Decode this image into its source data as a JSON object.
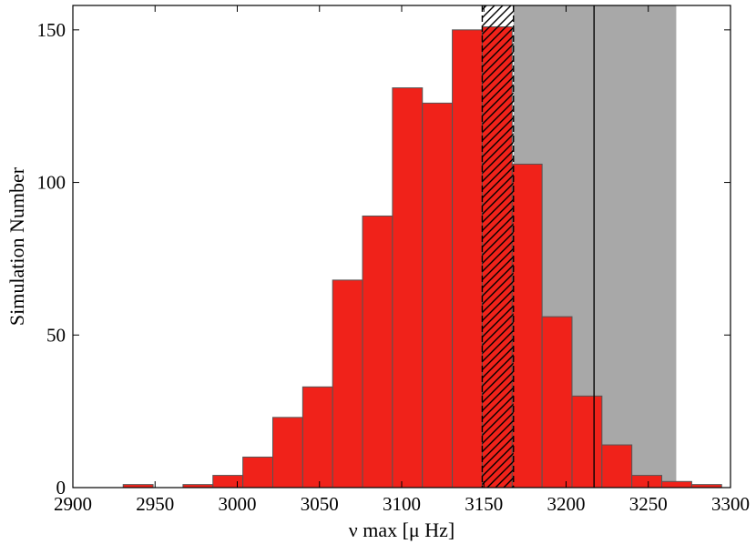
{
  "chart_data": {
    "type": "bar",
    "title": "",
    "xlabel": "ν max [μ Hz]",
    "ylabel": "Simulation Number",
    "xlim": [
      2900,
      3300
    ],
    "ylim": [
      0,
      158
    ],
    "xticks": [
      2900,
      2950,
      3000,
      3050,
      3100,
      3150,
      3200,
      3250,
      3300
    ],
    "yticks": [
      0,
      50,
      100,
      150
    ],
    "bins": [
      {
        "x0": 2930.6,
        "x1": 2948.8,
        "value": 1
      },
      {
        "x0": 2948.8,
        "x1": 2967.0,
        "value": 0
      },
      {
        "x0": 2967.0,
        "x1": 2985.2,
        "value": 1
      },
      {
        "x0": 2985.2,
        "x1": 3003.4,
        "value": 4
      },
      {
        "x0": 3003.4,
        "x1": 3021.6,
        "value": 10
      },
      {
        "x0": 3021.6,
        "x1": 3039.8,
        "value": 23
      },
      {
        "x0": 3039.8,
        "x1": 3058.0,
        "value": 33
      },
      {
        "x0": 3058.0,
        "x1": 3076.2,
        "value": 68
      },
      {
        "x0": 3076.2,
        "x1": 3094.4,
        "value": 89
      },
      {
        "x0": 3094.4,
        "x1": 3112.6,
        "value": 131
      },
      {
        "x0": 3112.6,
        "x1": 3130.8,
        "value": 126
      },
      {
        "x0": 3130.8,
        "x1": 3149.0,
        "value": 150
      },
      {
        "x0": 3149.0,
        "x1": 3167.2,
        "value": 151
      },
      {
        "x0": 3167.2,
        "x1": 3185.4,
        "value": 106
      },
      {
        "x0": 3185.4,
        "x1": 3203.6,
        "value": 56
      },
      {
        "x0": 3203.6,
        "x1": 3221.8,
        "value": 30
      },
      {
        "x0": 3221.8,
        "x1": 3240.0,
        "value": 14
      },
      {
        "x0": 3240.0,
        "x1": 3258.2,
        "value": 4
      },
      {
        "x0": 3258.2,
        "x1": 3276.4,
        "value": 2
      },
      {
        "x0": 3276.4,
        "x1": 3294.6,
        "value": 1
      }
    ],
    "observed_value": 3217,
    "observed_band": [
      3168,
      3267
    ],
    "hatched_band": [
      3149,
      3168
    ],
    "colors": {
      "bar_fill": "#f0221a",
      "bar_edge": "#555555",
      "shaded_band": "#a8a8a8",
      "hatch": "#000000"
    },
    "grid": false,
    "legend": "none"
  }
}
